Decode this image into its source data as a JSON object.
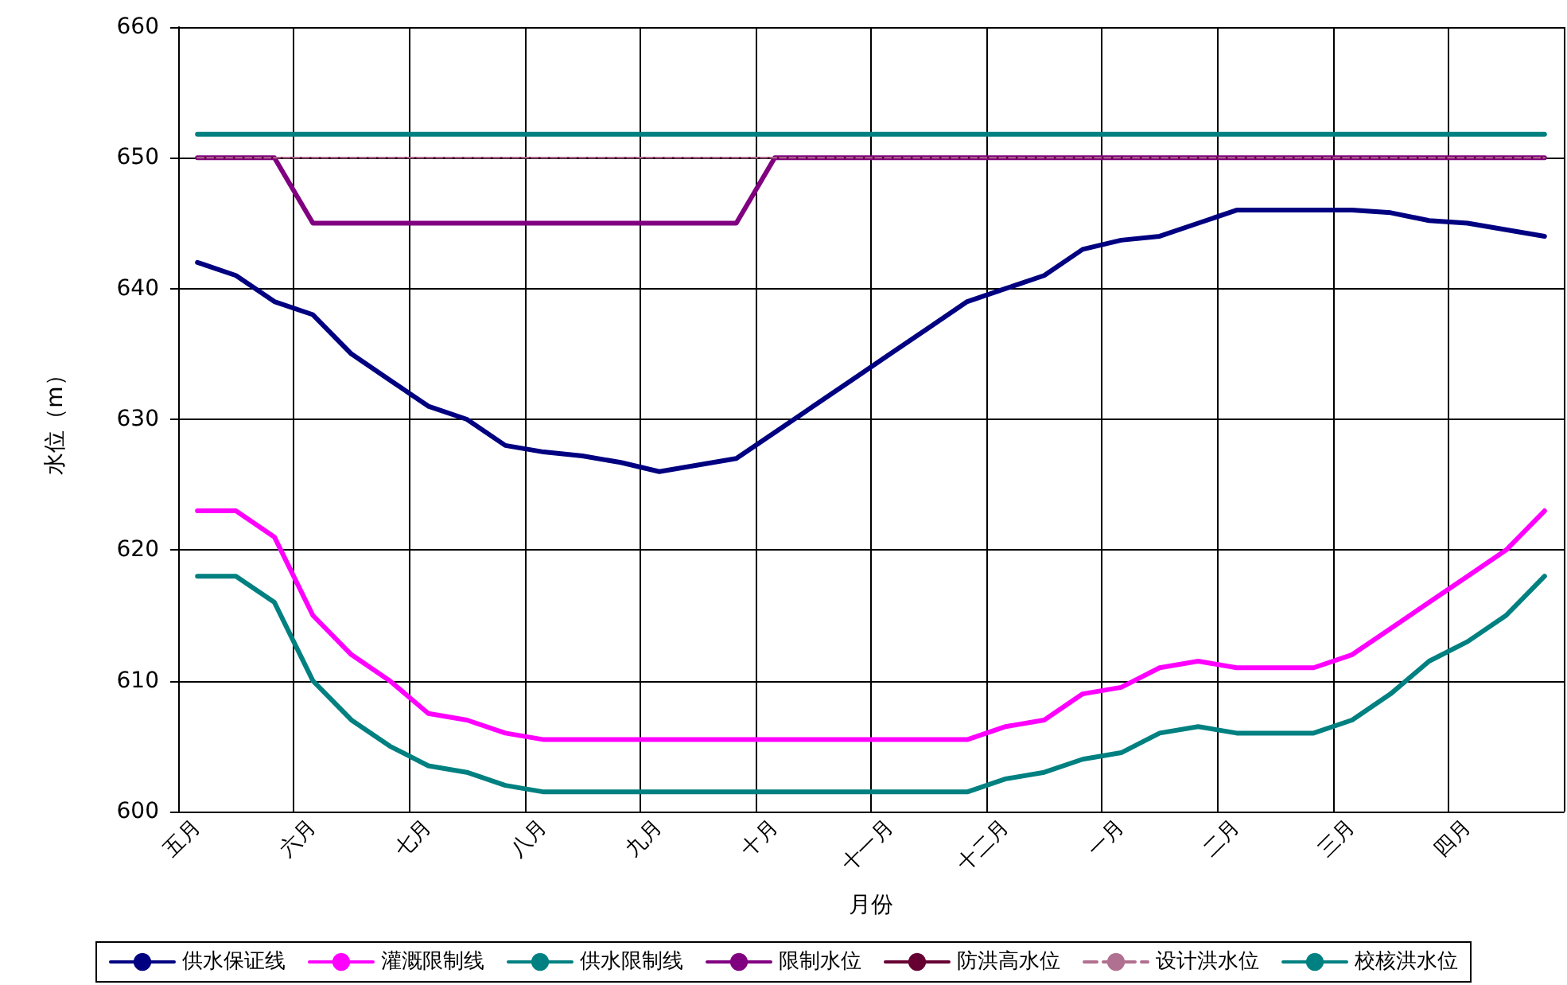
{
  "chart_data": {
    "type": "line",
    "xlabel": "月份",
    "ylabel": "水位（m）",
    "categories": [
      "五月",
      null,
      null,
      "六月",
      null,
      null,
      "七月",
      null,
      null,
      "八月",
      null,
      null,
      "九月",
      null,
      null,
      "十月",
      null,
      null,
      "十一月",
      null,
      null,
      "十二月",
      null,
      null,
      "一月",
      null,
      null,
      "二月",
      null,
      null,
      "三月",
      null,
      null,
      "四月",
      null,
      null
    ],
    "series": [
      {
        "name": "供水保证线",
        "color": "#000080",
        "values": [
          642,
          641,
          639,
          638,
          635,
          633,
          631,
          630,
          628,
          627.5,
          627.2,
          626.7,
          626,
          626.5,
          627,
          629,
          631,
          633,
          635,
          637,
          639,
          640,
          641,
          643,
          643.7,
          644,
          645,
          646,
          646,
          646,
          646,
          645.8,
          645.2,
          645,
          644.5,
          644
        ]
      },
      {
        "name": "灌溉限制线",
        "color": "#ff00ff",
        "values": [
          623,
          623,
          621,
          615,
          612,
          610,
          607.5,
          607,
          606,
          605.5,
          605.5,
          605.5,
          605.5,
          605.5,
          605.5,
          605.5,
          605.5,
          605.5,
          605.5,
          605.5,
          605.5,
          606.5,
          607,
          609,
          609.5,
          611,
          611.5,
          611,
          611,
          611,
          612,
          614,
          616,
          618,
          620,
          623
        ]
      },
      {
        "name": "供水限制线",
        "color": "#008080",
        "values": [
          618,
          618,
          616,
          610,
          607,
          605,
          603.5,
          603,
          602,
          601.5,
          601.5,
          601.5,
          601.5,
          601.5,
          601.5,
          601.5,
          601.5,
          601.5,
          601.5,
          601.5,
          601.5,
          602.5,
          603,
          604,
          604.5,
          606,
          606.5,
          606,
          606,
          606,
          607,
          609,
          611.5,
          613,
          615,
          618
        ]
      },
      {
        "name": "限制水位",
        "color": "#800080",
        "values": [
          650,
          650,
          650,
          645,
          645,
          645,
          645,
          645,
          645,
          645,
          645,
          645,
          645,
          645,
          645,
          650,
          650,
          650,
          650,
          650,
          650,
          650,
          650,
          650,
          650,
          650,
          650,
          650,
          650,
          650,
          650,
          650,
          650,
          650,
          650,
          650
        ]
      },
      {
        "name": "防洪高水位",
        "color": "#660033",
        "values": [
          650,
          650,
          650,
          650,
          650,
          650,
          650,
          650,
          650,
          650,
          650,
          650,
          650,
          650,
          650,
          650,
          650,
          650,
          650,
          650,
          650,
          650,
          650,
          650,
          650,
          650,
          650,
          650,
          650,
          650,
          650,
          650,
          650,
          650,
          650,
          650
        ]
      },
      {
        "name": "设计洪水位",
        "color": "#b07090",
        "line_style": "dashed",
        "values": [
          650,
          650,
          650,
          650,
          650,
          650,
          650,
          650,
          650,
          650,
          650,
          650,
          650,
          650,
          650,
          650,
          650,
          650,
          650,
          650,
          650,
          650,
          650,
          650,
          650,
          650,
          650,
          650,
          650,
          650,
          650,
          650,
          650,
          650,
          650,
          650
        ]
      },
      {
        "name": "校核洪水位",
        "color": "#008080",
        "values": [
          651.8,
          651.8,
          651.8,
          651.8,
          651.8,
          651.8,
          651.8,
          651.8,
          651.8,
          651.8,
          651.8,
          651.8,
          651.8,
          651.8,
          651.8,
          651.8,
          651.8,
          651.8,
          651.8,
          651.8,
          651.8,
          651.8,
          651.8,
          651.8,
          651.8,
          651.8,
          651.8,
          651.8,
          651.8,
          651.8,
          651.8,
          651.8,
          651.8,
          651.8,
          651.8,
          651.8
        ]
      }
    ],
    "ylim": [
      600,
      660
    ],
    "yticks": [
      600,
      610,
      620,
      630,
      640,
      650,
      660
    ],
    "grid": true,
    "legend": "bottom",
    "marker": "none",
    "line_style": "solid"
  }
}
